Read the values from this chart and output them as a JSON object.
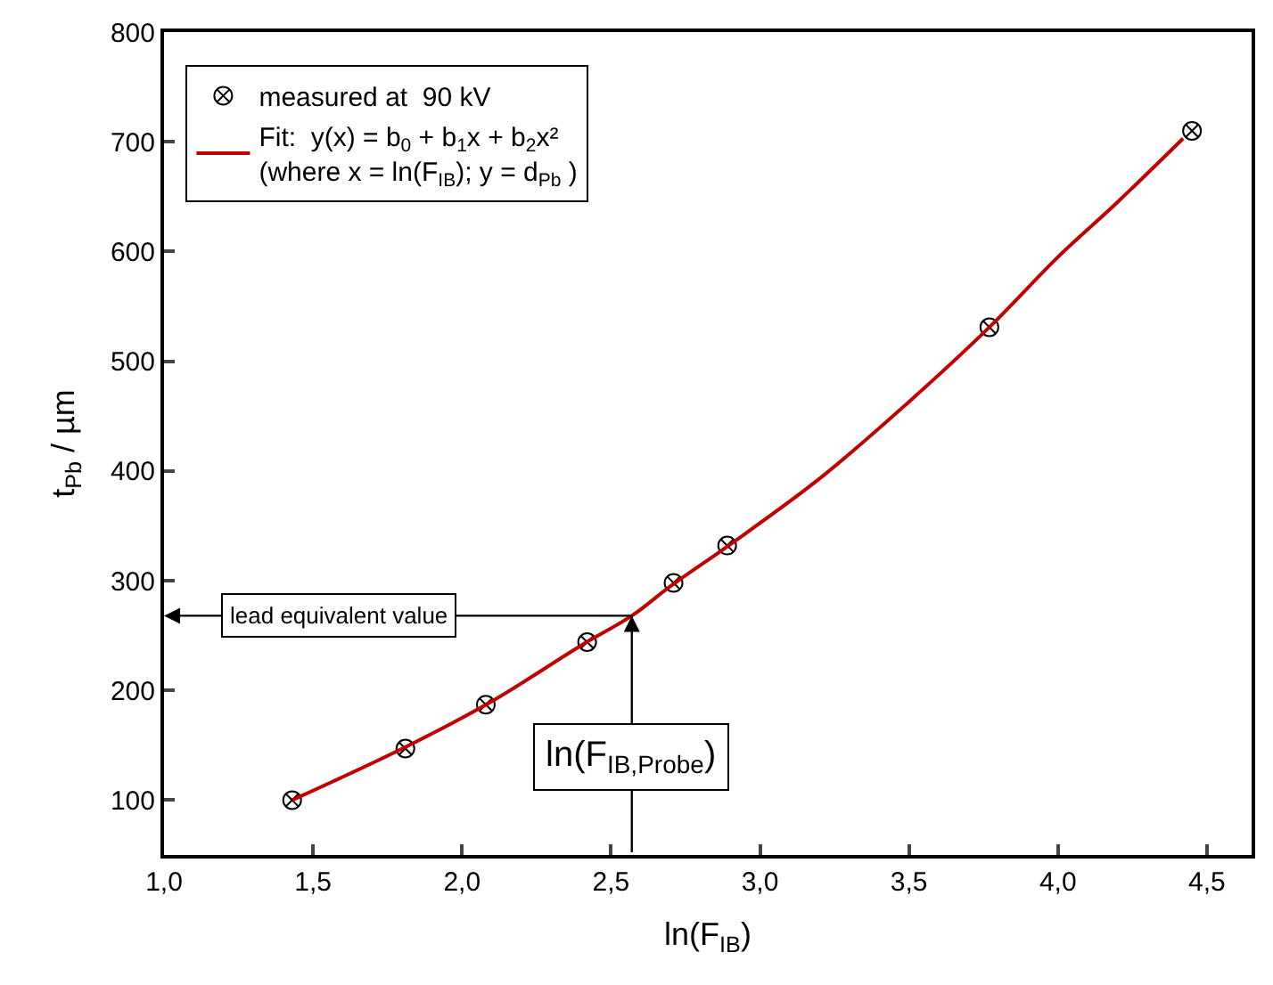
{
  "chart_data": {
    "type": "scatter",
    "xlabel": "ln(F$_{IB}$)",
    "ylabel": "t$_{Pb}$ / µm",
    "series": [
      {
        "name": "measured at  90 kV",
        "marker": "cross",
        "color": "#000000",
        "x": [
          1.43,
          1.81,
          2.08,
          2.42,
          2.71,
          2.89,
          3.77,
          4.45
        ],
        "values": [
          100,
          147,
          187,
          244,
          298,
          332,
          531,
          710
        ]
      },
      {
        "name": "Fit:  y(x) = b$_{0}$ + b$_{1}$x + b$_{2}$x²\n(where x = ln(F$_{IB}$); y = d$_{Pb}$ )",
        "type": "line",
        "marker": "none",
        "line_style": "solid",
        "color": "#c00000",
        "x": [
          1.43,
          1.8,
          2.1,
          2.4,
          2.57,
          2.7,
          2.9,
          3.2,
          3.5,
          3.77,
          4.0,
          4.2,
          4.42
        ],
        "values": [
          100,
          147,
          190,
          241,
          268,
          295,
          333,
          393,
          463,
          531,
          595,
          645,
          703
        ]
      }
    ],
    "annotations": [
      {
        "text": "lead equivalent value",
        "x": 2.57,
        "y": 268
      },
      {
        "text": "ln(F$_{IB,Probe}$)",
        "x": 2.57,
        "y": 268
      }
    ],
    "xlim": [
      1.0,
      4.65
    ],
    "xticks": [
      {
        "value": 1.0,
        "label": "1,0"
      },
      {
        "value": 1.5,
        "label": "1,5"
      },
      {
        "value": 2.0,
        "label": "2,0"
      },
      {
        "value": 2.5,
        "label": "2,5"
      },
      {
        "value": 3.0,
        "label": "3,0"
      },
      {
        "value": 3.5,
        "label": "3,5"
      },
      {
        "value": 4.0,
        "label": "4,0"
      },
      {
        "value": 4.5,
        "label": "4,5"
      }
    ],
    "ylim": [
      50,
      800
    ],
    "yticks": [
      100,
      200,
      300,
      400,
      500,
      600,
      700,
      800
    ],
    "legend": "top left"
  }
}
